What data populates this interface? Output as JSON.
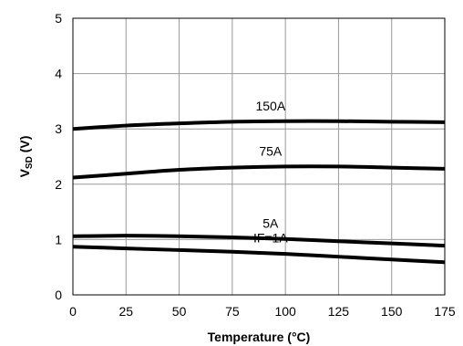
{
  "chart_data": {
    "type": "line",
    "title": "",
    "xlabel": "Temperature (°C)",
    "ylabel_main": "V",
    "ylabel_sub": "SD",
    "ylabel_tail": " (V)",
    "xlim": [
      0,
      175
    ],
    "ylim": [
      0,
      5
    ],
    "xticks": [
      0,
      25,
      50,
      75,
      100,
      125,
      150,
      175
    ],
    "yticks": [
      0,
      1,
      2,
      3,
      4,
      5
    ],
    "grid": true,
    "legend": "none",
    "line_color": "#000000",
    "series": [
      {
        "name": "150A",
        "x": [
          0,
          25,
          50,
          75,
          100,
          125,
          150,
          175
        ],
        "y": [
          3.0,
          3.06,
          3.1,
          3.13,
          3.14,
          3.14,
          3.13,
          3.12
        ]
      },
      {
        "name": "75A",
        "x": [
          0,
          25,
          50,
          75,
          100,
          125,
          150,
          175
        ],
        "y": [
          2.12,
          2.19,
          2.26,
          2.3,
          2.32,
          2.32,
          2.3,
          2.28
        ]
      },
      {
        "name": "5A",
        "x": [
          0,
          25,
          50,
          75,
          100,
          125,
          150,
          175
        ],
        "y": [
          1.06,
          1.07,
          1.06,
          1.04,
          1.01,
          0.97,
          0.93,
          0.89
        ]
      },
      {
        "name": "IF=1A",
        "x": [
          0,
          25,
          50,
          75,
          100,
          125,
          150,
          175
        ],
        "y": [
          0.87,
          0.84,
          0.81,
          0.78,
          0.74,
          0.69,
          0.64,
          0.59
        ]
      }
    ]
  }
}
